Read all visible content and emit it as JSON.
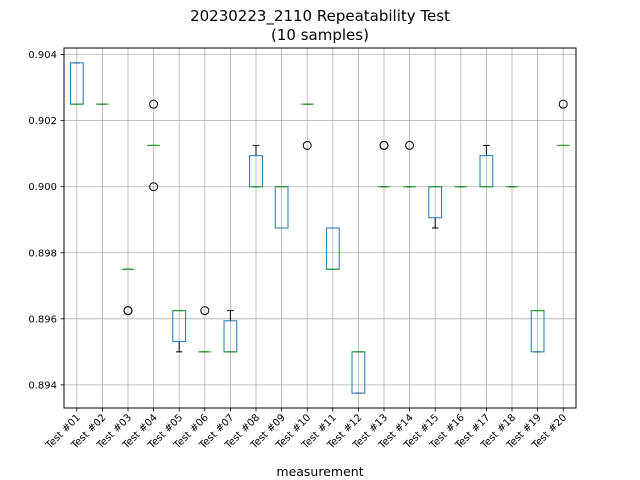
{
  "chart_data": {
    "type": "box",
    "title_lines": [
      "20230223_2110 Repeatability Test",
      "(10 samples)"
    ],
    "xlabel": "measurement",
    "ylabel": "",
    "ylim": [
      0.8933,
      0.9042
    ],
    "yticks": [
      "0.894",
      "0.896",
      "0.898",
      "0.900",
      "0.902",
      "0.904"
    ],
    "ytick_values": [
      0.894,
      0.896,
      0.898,
      0.9,
      0.902,
      0.904
    ],
    "grid": true,
    "colors": {
      "box": "#1f77b4",
      "median": "#2ca02c",
      "whisker": "#000000",
      "outlier": "#000000",
      "grid": "#b0b0b0"
    },
    "categories": [
      "Test #01",
      "Test #02",
      "Test #03",
      "Test #04",
      "Test #05",
      "Test #06",
      "Test #07",
      "Test #08",
      "Test #09",
      "Test #10",
      "Test #11",
      "Test #12",
      "Test #13",
      "Test #14",
      "Test #15",
      "Test #16",
      "Test #17",
      "Test #18",
      "Test #19",
      "Test #20"
    ],
    "boxes": [
      {
        "whislo": 0.9025,
        "q1": 0.9025,
        "med": 0.9025,
        "q3": 0.90375,
        "whishi": 0.90375,
        "fliers": []
      },
      {
        "whislo": 0.9025,
        "q1": 0.9025,
        "med": 0.9025,
        "q3": 0.9025,
        "whishi": 0.9025,
        "fliers": []
      },
      {
        "whislo": 0.8975,
        "q1": 0.8975,
        "med": 0.8975,
        "q3": 0.8975,
        "whishi": 0.8975,
        "fliers": [
          0.89625,
          0.89625
        ]
      },
      {
        "whislo": 0.90125,
        "q1": 0.90125,
        "med": 0.90125,
        "q3": 0.90125,
        "whishi": 0.90125,
        "fliers": [
          0.9025,
          0.9
        ]
      },
      {
        "whislo": 0.895,
        "q1": 0.89531,
        "med": 0.89625,
        "q3": 0.89625,
        "whishi": 0.89625,
        "fliers": []
      },
      {
        "whislo": 0.895,
        "q1": 0.895,
        "med": 0.895,
        "q3": 0.895,
        "whishi": 0.895,
        "fliers": [
          0.89625
        ]
      },
      {
        "whislo": 0.895,
        "q1": 0.895,
        "med": 0.895,
        "q3": 0.89594,
        "whishi": 0.89625,
        "fliers": []
      },
      {
        "whislo": 0.9,
        "q1": 0.9,
        "med": 0.9,
        "q3": 0.90094,
        "whishi": 0.90125,
        "fliers": []
      },
      {
        "whislo": 0.89875,
        "q1": 0.89875,
        "med": 0.9,
        "q3": 0.9,
        "whishi": 0.9,
        "fliers": []
      },
      {
        "whislo": 0.9025,
        "q1": 0.9025,
        "med": 0.9025,
        "q3": 0.9025,
        "whishi": 0.9025,
        "fliers": [
          0.90125
        ]
      },
      {
        "whislo": 0.8975,
        "q1": 0.8975,
        "med": 0.8975,
        "q3": 0.89875,
        "whishi": 0.89875,
        "fliers": []
      },
      {
        "whislo": 0.89375,
        "q1": 0.89375,
        "med": 0.895,
        "q3": 0.895,
        "whishi": 0.895,
        "fliers": []
      },
      {
        "whislo": 0.9,
        "q1": 0.9,
        "med": 0.9,
        "q3": 0.9,
        "whishi": 0.9,
        "fliers": [
          0.90125,
          0.90125
        ]
      },
      {
        "whislo": 0.9,
        "q1": 0.9,
        "med": 0.9,
        "q3": 0.9,
        "whishi": 0.9,
        "fliers": [
          0.90125
        ]
      },
      {
        "whislo": 0.89875,
        "q1": 0.89906,
        "med": 0.9,
        "q3": 0.9,
        "whishi": 0.9,
        "fliers": []
      },
      {
        "whislo": 0.9,
        "q1": 0.9,
        "med": 0.9,
        "q3": 0.9,
        "whishi": 0.9,
        "fliers": []
      },
      {
        "whislo": 0.9,
        "q1": 0.9,
        "med": 0.9,
        "q3": 0.90094,
        "whishi": 0.90125,
        "fliers": []
      },
      {
        "whislo": 0.9,
        "q1": 0.9,
        "med": 0.9,
        "q3": 0.9,
        "whishi": 0.9,
        "fliers": []
      },
      {
        "whislo": 0.895,
        "q1": 0.895,
        "med": 0.89625,
        "q3": 0.89625,
        "whishi": 0.89625,
        "fliers": []
      },
      {
        "whislo": 0.90125,
        "q1": 0.90125,
        "med": 0.90125,
        "q3": 0.90125,
        "whishi": 0.90125,
        "fliers": [
          0.9025
        ]
      }
    ]
  }
}
